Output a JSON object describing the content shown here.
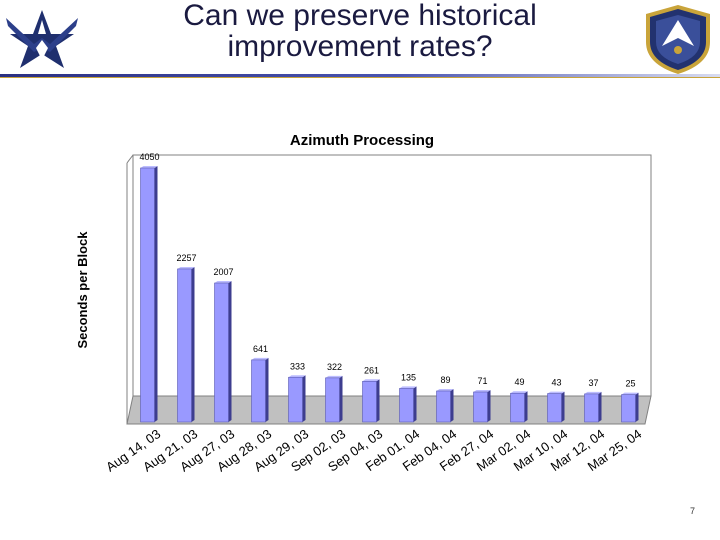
{
  "slide": {
    "title_line1": "Can we preserve historical",
    "title_line2": "improvement rates?",
    "page_number": "7"
  },
  "colors": {
    "bar": "#9999ff",
    "bar_shadow": "#3d3d8f",
    "plot_background": "#c0c0c0",
    "title_text": "#1a1a40"
  },
  "chart_data": {
    "type": "bar",
    "title": "Azimuth Processing",
    "ylabel": "Seconds per Block",
    "xlabel": "",
    "categories": [
      "Aug 14, 03",
      "Aug 21, 03",
      "Aug 27, 03",
      "Aug 28, 03",
      "Aug 29, 03",
      "Sep 02, 03",
      "Sep 04, 03",
      "Feb 01, 04",
      "Feb 04, 04",
      "Feb 27, 04",
      "Mar 02, 04",
      "Mar 10, 04",
      "Mar 12, 04",
      "Mar 25, 04"
    ],
    "values": [
      4050,
      2257,
      2007,
      641,
      333,
      322,
      261,
      135,
      89,
      71,
      49,
      43,
      37,
      25
    ],
    "ylim": [
      0,
      4500
    ],
    "grid": false,
    "legend": "none",
    "data_labels": true
  }
}
